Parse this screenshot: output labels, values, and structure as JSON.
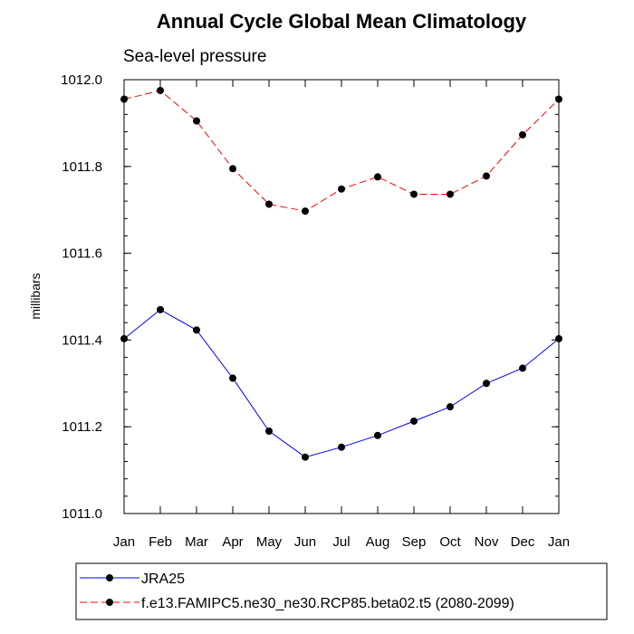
{
  "chart_data": {
    "type": "line",
    "title": "Annual Cycle Global Mean Climatology",
    "subtitle": "Sea-level pressure",
    "ylabel": "millibars",
    "xlabel": "",
    "categories": [
      "Jan",
      "Feb",
      "Mar",
      "Apr",
      "May",
      "Jun",
      "Jul",
      "Aug",
      "Sep",
      "Oct",
      "Nov",
      "Dec",
      "Jan"
    ],
    "ylim": [
      1011.0,
      1012.0
    ],
    "yticks": [
      1011.0,
      1011.2,
      1011.4,
      1011.6,
      1011.8,
      1012.0
    ],
    "ytick_labels": [
      "1011.0",
      "1011.2",
      "1011.4",
      "1011.6",
      "1011.8",
      "1012.0"
    ],
    "grid": false,
    "legend_position": "bottom",
    "series": [
      {
        "name": "JRA25",
        "color": "#0000ff",
        "line_style": "solid",
        "marker": "filled-circle",
        "values": [
          1011.403,
          1011.47,
          1011.423,
          1011.312,
          1011.19,
          1011.13,
          1011.153,
          1011.18,
          1011.213,
          1011.246,
          1011.3,
          1011.335,
          1011.403
        ]
      },
      {
        "name": "f.e13.FAMIPC5.ne30_ne30.RCP85.beta02.t5 (2080-2099)",
        "color": "#ff0000",
        "line_style": "dashed",
        "marker": "filled-circle",
        "values": [
          1011.955,
          1011.975,
          1011.905,
          1011.795,
          1011.713,
          1011.697,
          1011.748,
          1011.776,
          1011.736,
          1011.736,
          1011.778,
          1011.873,
          1011.955
        ]
      }
    ]
  }
}
